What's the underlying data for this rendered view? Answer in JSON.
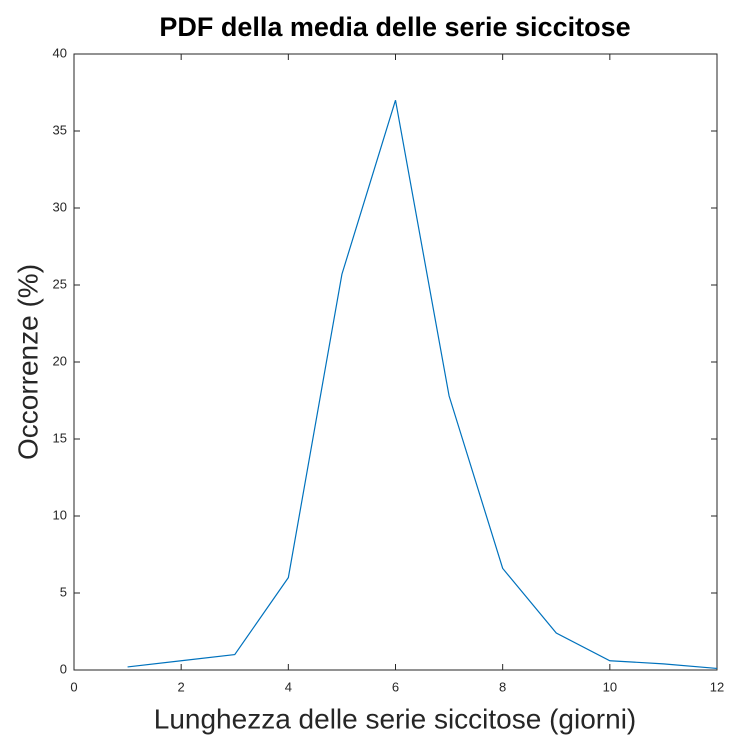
{
  "chart_data": {
    "type": "line",
    "title": "PDF della media delle serie siccitose",
    "xlabel": "Lunghezza delle serie siccitose (giorni)",
    "ylabel": "Occorrenze (%)",
    "x": [
      1,
      2,
      3,
      4,
      5,
      6,
      7,
      8,
      9,
      10,
      11,
      12
    ],
    "series": [
      {
        "name": "PDF",
        "color": "#0072bd",
        "values": [
          0.2,
          0.6,
          1.0,
          6.0,
          25.7,
          37.0,
          17.8,
          6.6,
          2.4,
          0.6,
          0.4,
          0.1
        ]
      }
    ],
    "xlim": [
      0,
      12
    ],
    "xticks": [
      0,
      2,
      4,
      6,
      8,
      10,
      12
    ],
    "ylim": [
      0,
      40
    ],
    "yticks": [
      0,
      5,
      10,
      15,
      20,
      25,
      30,
      35,
      40
    ],
    "grid": false
  }
}
